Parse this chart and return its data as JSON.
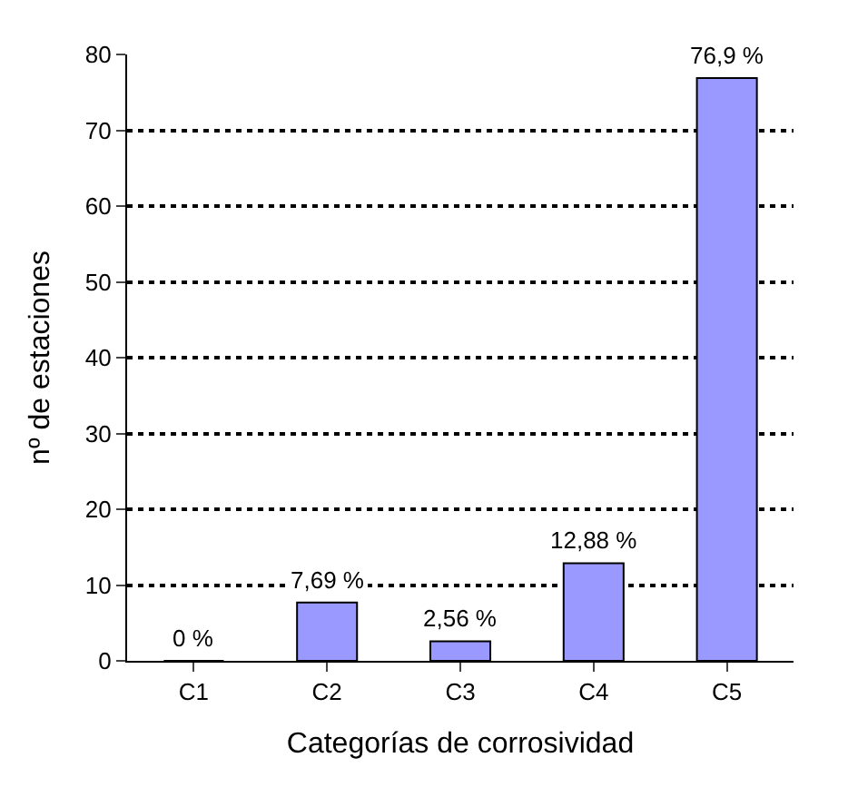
{
  "chart_data": {
    "type": "bar",
    "xlabel": "Categorías de corrosividad",
    "ylabel": "nº de estaciones",
    "categories": [
      "C1",
      "C2",
      "C3",
      "C4",
      "C5"
    ],
    "values": [
      0,
      7.69,
      2.56,
      12.88,
      76.9
    ],
    "value_labels": [
      "0 %",
      "7,69 %",
      "2,56 %",
      "12,88 %",
      "76,9 %"
    ],
    "color": "#9999ff",
    "ylim": [
      0,
      80
    ],
    "yticks": [
      0,
      10,
      20,
      30,
      40,
      50,
      60,
      70,
      80
    ],
    "grid": "y"
  }
}
